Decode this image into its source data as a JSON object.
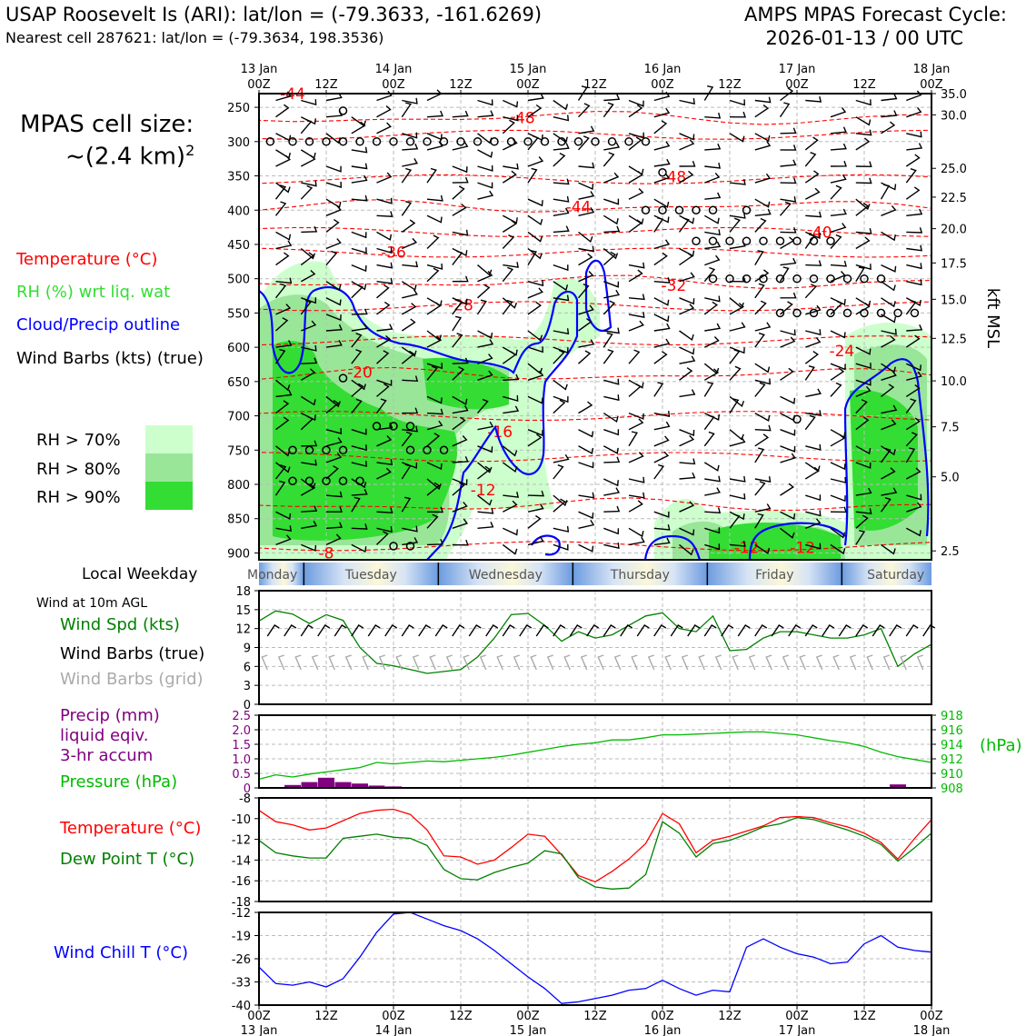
{
  "header": {
    "title": "USAP Roosevelt Is (ARI): lat/lon = (-79.3633, -161.6269)",
    "subtitle": "Nearest cell 287621: lat/lon = (-79.3634, 198.3536)",
    "right_line1": "AMPS MPAS Forecast Cycle:",
    "right_line2": "2026-01-13 / 00 UTC"
  },
  "cell_size": {
    "line1": "MPAS cell size:",
    "line2": "~(2.4 km)",
    "sup": "2"
  },
  "legend": {
    "temperature": "Temperature (°C)",
    "rh": "RH (%) wrt liq. wat",
    "cloud": "Cloud/Precip outline",
    "wind": "Wind Barbs (kts) (true)",
    "rh70": "RH > 70%",
    "rh80": "RH > 80%",
    "rh90": "RH > 90%"
  },
  "colors": {
    "temperature": "#ff0000",
    "rh_label": "#33dd33",
    "cloud": "#0000ff",
    "rh70": "#ccffcc",
    "rh80": "#99e699",
    "rh90": "#33dd33",
    "wind_speed": "#008000",
    "precip": "#800080",
    "pressure": "#00bb00",
    "dewpoint": "#008000",
    "windchill": "#0000ff",
    "grid_barb": "#aaaaaa"
  },
  "panel_labels": {
    "weekday": "Local Weekday",
    "wind10": "Wind at 10m AGL",
    "wind_spd": "Wind Spd (kts)",
    "wind_true": "Wind Barbs (true)",
    "wind_grid": "Wind Barbs (grid)",
    "precip1": "Precip (mm)",
    "precip2": "liquid eqiv.",
    "precip3": "3-hr accum",
    "pressure": "Pressure (hPa)",
    "pressure_unit": "(hPa)",
    "temperature": "Temperature (°C)",
    "dewpoint": "Dew Point T (°C)",
    "windchill": "Wind Chill T (°C)"
  },
  "chart_data": [
    {
      "type": "cross-section",
      "title": "Time-height cross section",
      "time_ticks": [
        "00Z",
        "12Z",
        "00Z",
        "12Z",
        "00Z",
        "12Z",
        "00Z",
        "12Z",
        "00Z",
        "12Z",
        "00Z"
      ],
      "date_ticks": [
        "13 Jan",
        "14 Jan",
        "15 Jan",
        "16 Jan",
        "17 Jan",
        "18 Jan"
      ],
      "date_tick_hours": [
        0,
        24,
        48,
        72,
        96,
        120
      ],
      "x_range_hours": [
        0,
        120
      ],
      "pressure_ticks": [
        250,
        300,
        350,
        400,
        450,
        500,
        550,
        600,
        650,
        700,
        750,
        800,
        850,
        900
      ],
      "pressure_range": [
        230,
        910
      ],
      "ylabel_right": "kft MSL",
      "height_ticks_kft": [
        {
          "label": "35.0",
          "p": 230
        },
        {
          "label": "30.0",
          "p": 261
        },
        {
          "label": "25.0",
          "p": 339
        },
        {
          "label": "22.5",
          "p": 381
        },
        {
          "label": "20.0",
          "p": 427
        },
        {
          "label": "17.5",
          "p": 477
        },
        {
          "label": "15.0",
          "p": 530
        },
        {
          "label": "12.5",
          "p": 587
        },
        {
          "label": "10.0",
          "p": 649
        },
        {
          "label": "7.5",
          "p": 716
        },
        {
          "label": "5.0",
          "p": 789
        },
        {
          "label": "2.5",
          "p": 897
        }
      ],
      "temperature_labels": [
        {
          "text": "-44",
          "h": 6,
          "p": 230
        },
        {
          "text": "-48",
          "h": 47,
          "p": 265
        },
        {
          "text": "-48",
          "h": 74,
          "p": 351
        },
        {
          "text": "-44",
          "h": 57,
          "p": 395
        },
        {
          "text": "-40",
          "h": 100,
          "p": 432
        },
        {
          "text": "-36",
          "h": 24,
          "p": 461
        },
        {
          "text": "-32",
          "h": 74,
          "p": 510
        },
        {
          "text": "-28",
          "h": 36,
          "p": 538
        },
        {
          "text": "-24",
          "h": 104,
          "p": 605
        },
        {
          "text": "-20",
          "h": 18,
          "p": 636
        },
        {
          "text": "-16",
          "h": 43,
          "p": 723
        },
        {
          "text": "-12",
          "h": 40,
          "p": 808
        },
        {
          "text": "-12",
          "h": 87,
          "p": 892
        },
        {
          "text": "-12",
          "h": 97,
          "p": 892
        },
        {
          "text": "-8",
          "h": 12,
          "p": 900
        }
      ]
    },
    {
      "type": "timeline",
      "title": "Local Weekday",
      "days": [
        "Monday",
        "Tuesday",
        "Wednesday",
        "Thursday",
        "Friday",
        "Saturday"
      ]
    },
    {
      "type": "line",
      "title": "Wind Spd (kts)",
      "x_hours": [
        0,
        3,
        6,
        9,
        12,
        15,
        18,
        21,
        24,
        27,
        30,
        33,
        36,
        39,
        42,
        45,
        48,
        51,
        54,
        57,
        60,
        63,
        66,
        69,
        72,
        75,
        78,
        81,
        84,
        87,
        90,
        93,
        96,
        99,
        102,
        105,
        108,
        111,
        114,
        117,
        120
      ],
      "values": [
        13.2,
        14.8,
        14.3,
        12.8,
        14.2,
        13.3,
        9.0,
        6.5,
        6.1,
        5.5,
        4.9,
        5.2,
        5.5,
        7.5,
        10.5,
        14.2,
        14.4,
        12.5,
        10.0,
        11.5,
        10.5,
        11.0,
        12.5,
        14.0,
        14.5,
        12.0,
        11.5,
        14.0,
        8.5,
        8.7,
        10.5,
        11.5,
        11.5,
        11.0,
        10.5,
        10.5,
        11.0,
        12.0,
        6.0,
        8.0,
        9.5
      ],
      "ylim": [
        0,
        18
      ],
      "yticks": [
        0,
        3,
        6,
        9,
        12,
        15,
        18
      ]
    },
    {
      "type": "bar+line",
      "title": "Precip / Pressure",
      "x_hours": [
        6,
        9,
        12,
        15,
        18,
        21,
        24,
        27,
        114
      ],
      "precip_mm": [
        0.1,
        0.2,
        0.35,
        0.2,
        0.15,
        0.08,
        0.05,
        0.03,
        0.12
      ],
      "precip_ylim": [
        0,
        2.5
      ],
      "precip_yticks": [
        "0",
        "0.5",
        "1.0",
        "1.5",
        "2.0",
        "2.5"
      ],
      "pressure_x_hours": [
        0,
        3,
        6,
        9,
        12,
        15,
        18,
        21,
        24,
        27,
        30,
        33,
        36,
        39,
        42,
        45,
        48,
        51,
        54,
        57,
        60,
        63,
        66,
        69,
        72,
        75,
        78,
        81,
        84,
        87,
        90,
        93,
        96,
        99,
        102,
        105,
        108,
        111,
        114,
        117,
        120
      ],
      "pressure_hpa": [
        909.2,
        909.8,
        909.5,
        909.9,
        910.2,
        910.5,
        910.8,
        911.5,
        911.3,
        911.5,
        911.7,
        911.6,
        911.8,
        912.0,
        912.2,
        912.5,
        912.9,
        913.3,
        913.7,
        914.0,
        914.2,
        914.6,
        914.6,
        914.9,
        915.3,
        915.3,
        915.4,
        915.5,
        915.6,
        915.7,
        915.7,
        915.5,
        915.3,
        914.9,
        914.5,
        914.2,
        913.7,
        912.9,
        912.3,
        911.9,
        911.5
      ],
      "pressure_ylim": [
        908,
        918
      ],
      "pressure_yticks": [
        908,
        910,
        912,
        914,
        916,
        918
      ]
    },
    {
      "type": "line",
      "title": "Temperature / Dew Point",
      "x_hours": [
        0,
        3,
        6,
        9,
        12,
        15,
        18,
        21,
        24,
        27,
        30,
        33,
        36,
        39,
        42,
        45,
        48,
        51,
        54,
        57,
        60,
        63,
        66,
        69,
        72,
        75,
        78,
        81,
        84,
        87,
        90,
        93,
        96,
        99,
        102,
        105,
        108,
        111,
        114,
        117,
        120
      ],
      "series": [
        {
          "name": "Temperature (°C)",
          "values": [
            -9.2,
            -10.3,
            -10.6,
            -11.1,
            -10.9,
            -10.2,
            -9.5,
            -9.2,
            -9.1,
            -9.6,
            -11.1,
            -13.6,
            -13.7,
            -14.4,
            -14.0,
            -12.8,
            -11.5,
            -11.7,
            -13.5,
            -15.5,
            -16.1,
            -15.1,
            -13.9,
            -12.4,
            -9.5,
            -10.5,
            -13.3,
            -12.1,
            -11.7,
            -11.2,
            -10.7,
            -9.9,
            -9.8,
            -9.9,
            -10.4,
            -10.8,
            -11.4,
            -12.3,
            -13.9,
            -11.9,
            -10.1
          ]
        },
        {
          "name": "Dew Point T (°C)",
          "values": [
            -12.1,
            -13.3,
            -13.6,
            -13.8,
            -13.8,
            -11.9,
            -11.7,
            -11.5,
            -11.8,
            -11.9,
            -12.6,
            -14.9,
            -15.8,
            -15.9,
            -15.2,
            -14.7,
            -14.3,
            -13.1,
            -13.4,
            -15.7,
            -16.6,
            -16.8,
            -16.7,
            -15.4,
            -10.3,
            -11.4,
            -13.7,
            -12.4,
            -12.1,
            -11.5,
            -10.8,
            -10.5,
            -9.9,
            -10.1,
            -10.6,
            -11.1,
            -11.7,
            -12.5,
            -14.1,
            -12.8,
            -11.4
          ]
        }
      ],
      "ylim": [
        -18,
        -8
      ],
      "yticks": [
        -18,
        -16,
        -14,
        -12,
        -10,
        -8
      ]
    },
    {
      "type": "line",
      "title": "Wind Chill T (°C)",
      "x_hours": [
        0,
        3,
        6,
        9,
        12,
        15,
        18,
        21,
        24,
        27,
        30,
        33,
        36,
        39,
        42,
        45,
        48,
        51,
        54,
        57,
        60,
        63,
        66,
        69,
        72,
        75,
        78,
        81,
        84,
        87,
        90,
        93,
        96,
        99,
        102,
        105,
        108,
        111,
        114,
        117,
        120
      ],
      "values": [
        -28.5,
        -33.5,
        -34.0,
        -33.0,
        -34.5,
        -32.0,
        -25.5,
        -18.0,
        -12.5,
        -12.0,
        -14.0,
        -16.0,
        -17.5,
        -20.0,
        -23.5,
        -27.5,
        -31.5,
        -35.0,
        -39.5,
        -39.0,
        -38.0,
        -37.0,
        -35.5,
        -35.0,
        -32.5,
        -35.0,
        -37.0,
        -35.5,
        -36.0,
        -22.5,
        -20.0,
        -22.5,
        -24.5,
        -25.5,
        -27.5,
        -27.0,
        -21.5,
        -19.0,
        -22.5,
        -23.5,
        -24.0
      ],
      "ylim": [
        -40,
        -12
      ],
      "yticks": [
        -40,
        -33,
        -26,
        -19,
        -12
      ]
    }
  ]
}
